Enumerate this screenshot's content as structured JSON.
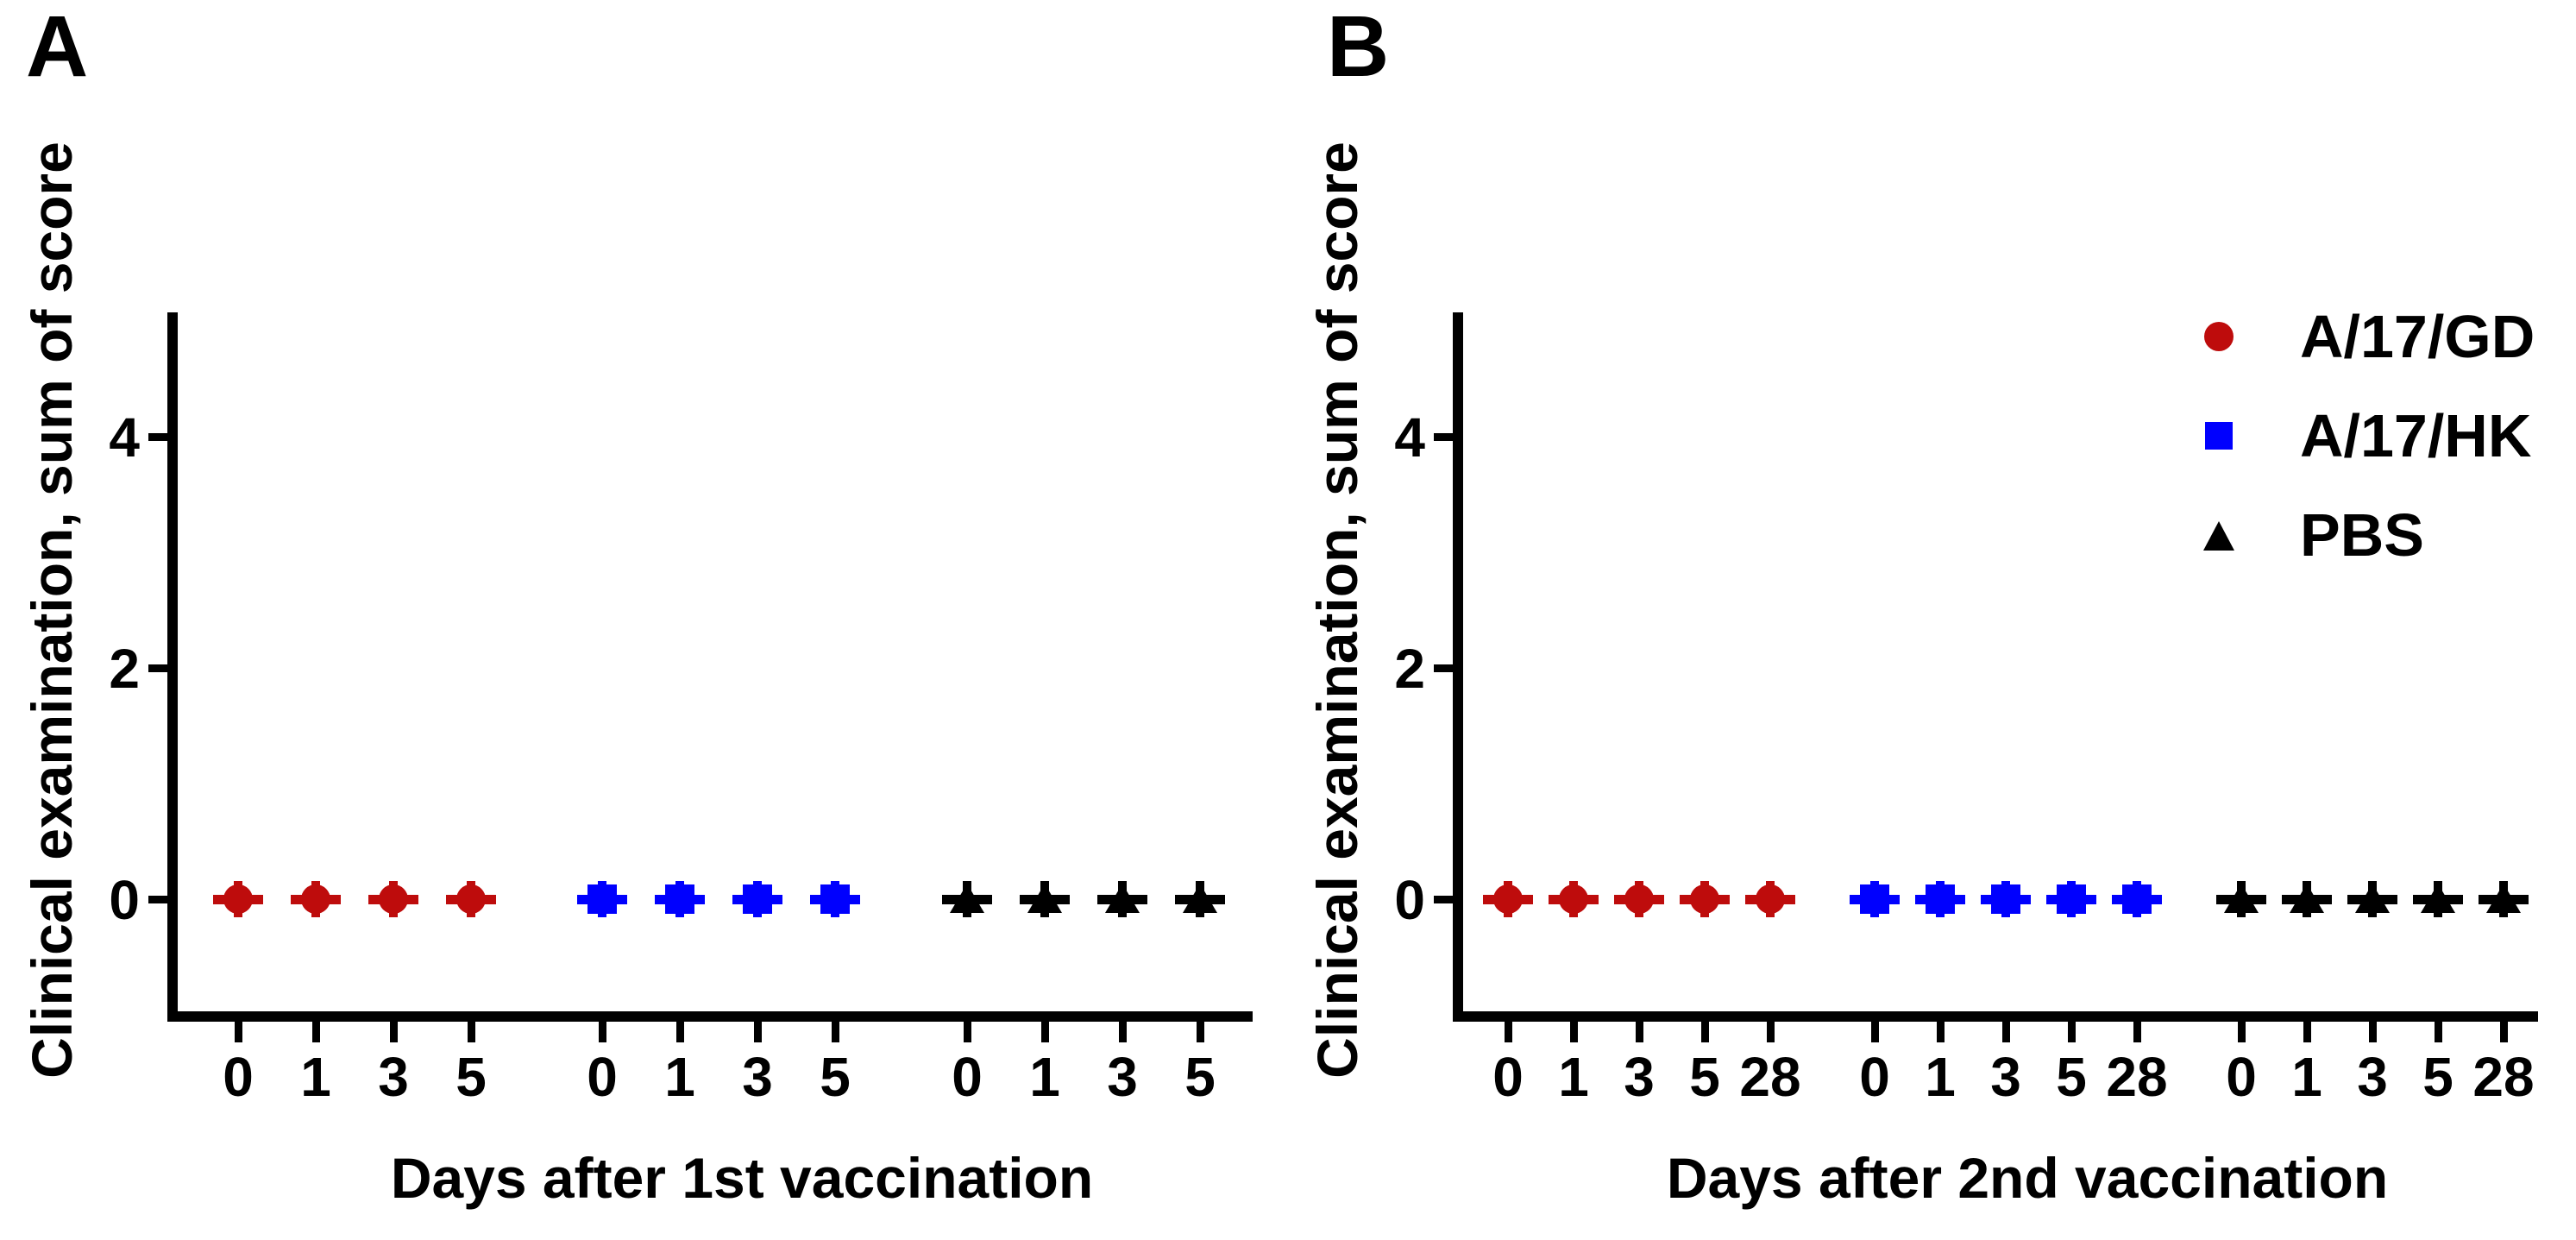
{
  "figure": {
    "background": "#FFFFFF",
    "axis_color": "#000000",
    "panels": [
      {
        "label": "A",
        "y_title": "Clinical examination, sum of score",
        "x_title": "Days after 1st vaccination",
        "y_tick_labels": [
          "0",
          "2",
          "4"
        ],
        "x_tick_labels": [
          "0",
          "1",
          "3",
          "5",
          "0",
          "1",
          "3",
          "5",
          "0",
          "1",
          "3",
          "5"
        ]
      },
      {
        "label": "B",
        "y_title": "Clinical examination, sum of score",
        "x_title": "Days after 2nd vaccination",
        "y_tick_labels": [
          "0",
          "2",
          "4"
        ],
        "x_tick_labels": [
          "0",
          "1",
          "3",
          "5",
          "28",
          "0",
          "1",
          "3",
          "5",
          "28",
          "0",
          "1",
          "3",
          "5",
          "28"
        ]
      }
    ],
    "legend": {
      "items": [
        {
          "label": "A/17/GD",
          "marker": "circle",
          "color": "#BE0C0C"
        },
        {
          "label": "A/17/HK",
          "marker": "square",
          "color": "#0000FE"
        },
        {
          "label": "PBS",
          "marker": "triangle",
          "color": "#000000"
        }
      ]
    }
  },
  "chart_data": [
    {
      "type": "scatter",
      "panel": "A",
      "title": "",
      "xlabel": "Days after 1st vaccination",
      "ylabel": "Clinical examination, sum of score",
      "ylim": [
        -1,
        5
      ],
      "yticks": [
        0,
        2,
        4
      ],
      "categories": [
        0,
        1,
        3,
        5
      ],
      "grid": false,
      "legend_visible": false,
      "series": [
        {
          "name": "A/17/GD",
          "marker": "circle",
          "color": "#BE0C0C",
          "x": [
            0,
            1,
            3,
            5
          ],
          "y": [
            0,
            0,
            0,
            0
          ],
          "error": [
            0,
            0,
            0,
            0
          ]
        },
        {
          "name": "A/17/HK",
          "marker": "square",
          "color": "#0000FE",
          "x": [
            0,
            1,
            3,
            5
          ],
          "y": [
            0,
            0,
            0,
            0
          ],
          "error": [
            0,
            0,
            0,
            0
          ]
        },
        {
          "name": "PBS",
          "marker": "triangle",
          "color": "#000000",
          "x": [
            0,
            1,
            3,
            5
          ],
          "y": [
            0,
            0,
            0,
            0
          ],
          "error": [
            0,
            0,
            0,
            0
          ]
        }
      ]
    },
    {
      "type": "scatter",
      "panel": "B",
      "title": "",
      "xlabel": "Days after 2nd vaccination",
      "ylabel": "Clinical examination, sum of score",
      "ylim": [
        -1,
        5
      ],
      "yticks": [
        0,
        2,
        4
      ],
      "categories": [
        0,
        1,
        3,
        5,
        28
      ],
      "grid": false,
      "legend_visible": true,
      "legend_position": "right",
      "series": [
        {
          "name": "A/17/GD",
          "marker": "circle",
          "color": "#BE0C0C",
          "x": [
            0,
            1,
            3,
            5,
            28
          ],
          "y": [
            0,
            0,
            0,
            0,
            0
          ],
          "error": [
            0,
            0,
            0,
            0,
            0
          ]
        },
        {
          "name": "A/17/HK",
          "marker": "square",
          "color": "#0000FE",
          "x": [
            0,
            1,
            3,
            5,
            28
          ],
          "y": [
            0,
            0,
            0,
            0,
            0
          ],
          "error": [
            0,
            0,
            0,
            0,
            0
          ]
        },
        {
          "name": "PBS",
          "marker": "triangle",
          "color": "#000000",
          "x": [
            0,
            1,
            3,
            5,
            28
          ],
          "y": [
            0,
            0,
            0,
            0,
            0
          ],
          "error": [
            0,
            0,
            0,
            0,
            0
          ]
        }
      ]
    }
  ]
}
